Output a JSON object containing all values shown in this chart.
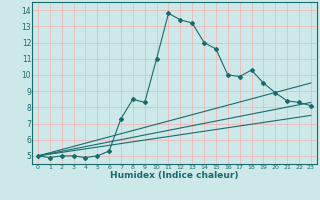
{
  "xlabel": "Humidex (Indice chaleur)",
  "bg_color": "#cce8e8",
  "grid_color": "#f0b8b8",
  "line_color": "#1a6b6b",
  "xlim": [
    -0.5,
    23.5
  ],
  "ylim": [
    4.5,
    14.5
  ],
  "xticks": [
    0,
    1,
    2,
    3,
    4,
    5,
    6,
    7,
    8,
    9,
    10,
    11,
    12,
    13,
    14,
    15,
    16,
    17,
    18,
    19,
    20,
    21,
    22,
    23
  ],
  "yticks": [
    5,
    6,
    7,
    8,
    9,
    10,
    11,
    12,
    13,
    14
  ],
  "main_curve_x": [
    0,
    1,
    2,
    3,
    4,
    5,
    6,
    7,
    8,
    9,
    10,
    11,
    12,
    13,
    14,
    15,
    16,
    17,
    18,
    19,
    20,
    21,
    22,
    23
  ],
  "main_curve_y": [
    5,
    4.9,
    5,
    5,
    4.9,
    5,
    5.3,
    7.3,
    8.5,
    8.3,
    11,
    13.8,
    13.4,
    13.2,
    12,
    11.6,
    10,
    9.9,
    10.3,
    9.5,
    8.9,
    8.4,
    8.3,
    8.1
  ],
  "linear_lines": [
    {
      "x": [
        0,
        23
      ],
      "y": [
        5.0,
        9.5
      ]
    },
    {
      "x": [
        0,
        23
      ],
      "y": [
        5.0,
        8.3
      ]
    },
    {
      "x": [
        0,
        23
      ],
      "y": [
        5.0,
        7.5
      ]
    }
  ]
}
